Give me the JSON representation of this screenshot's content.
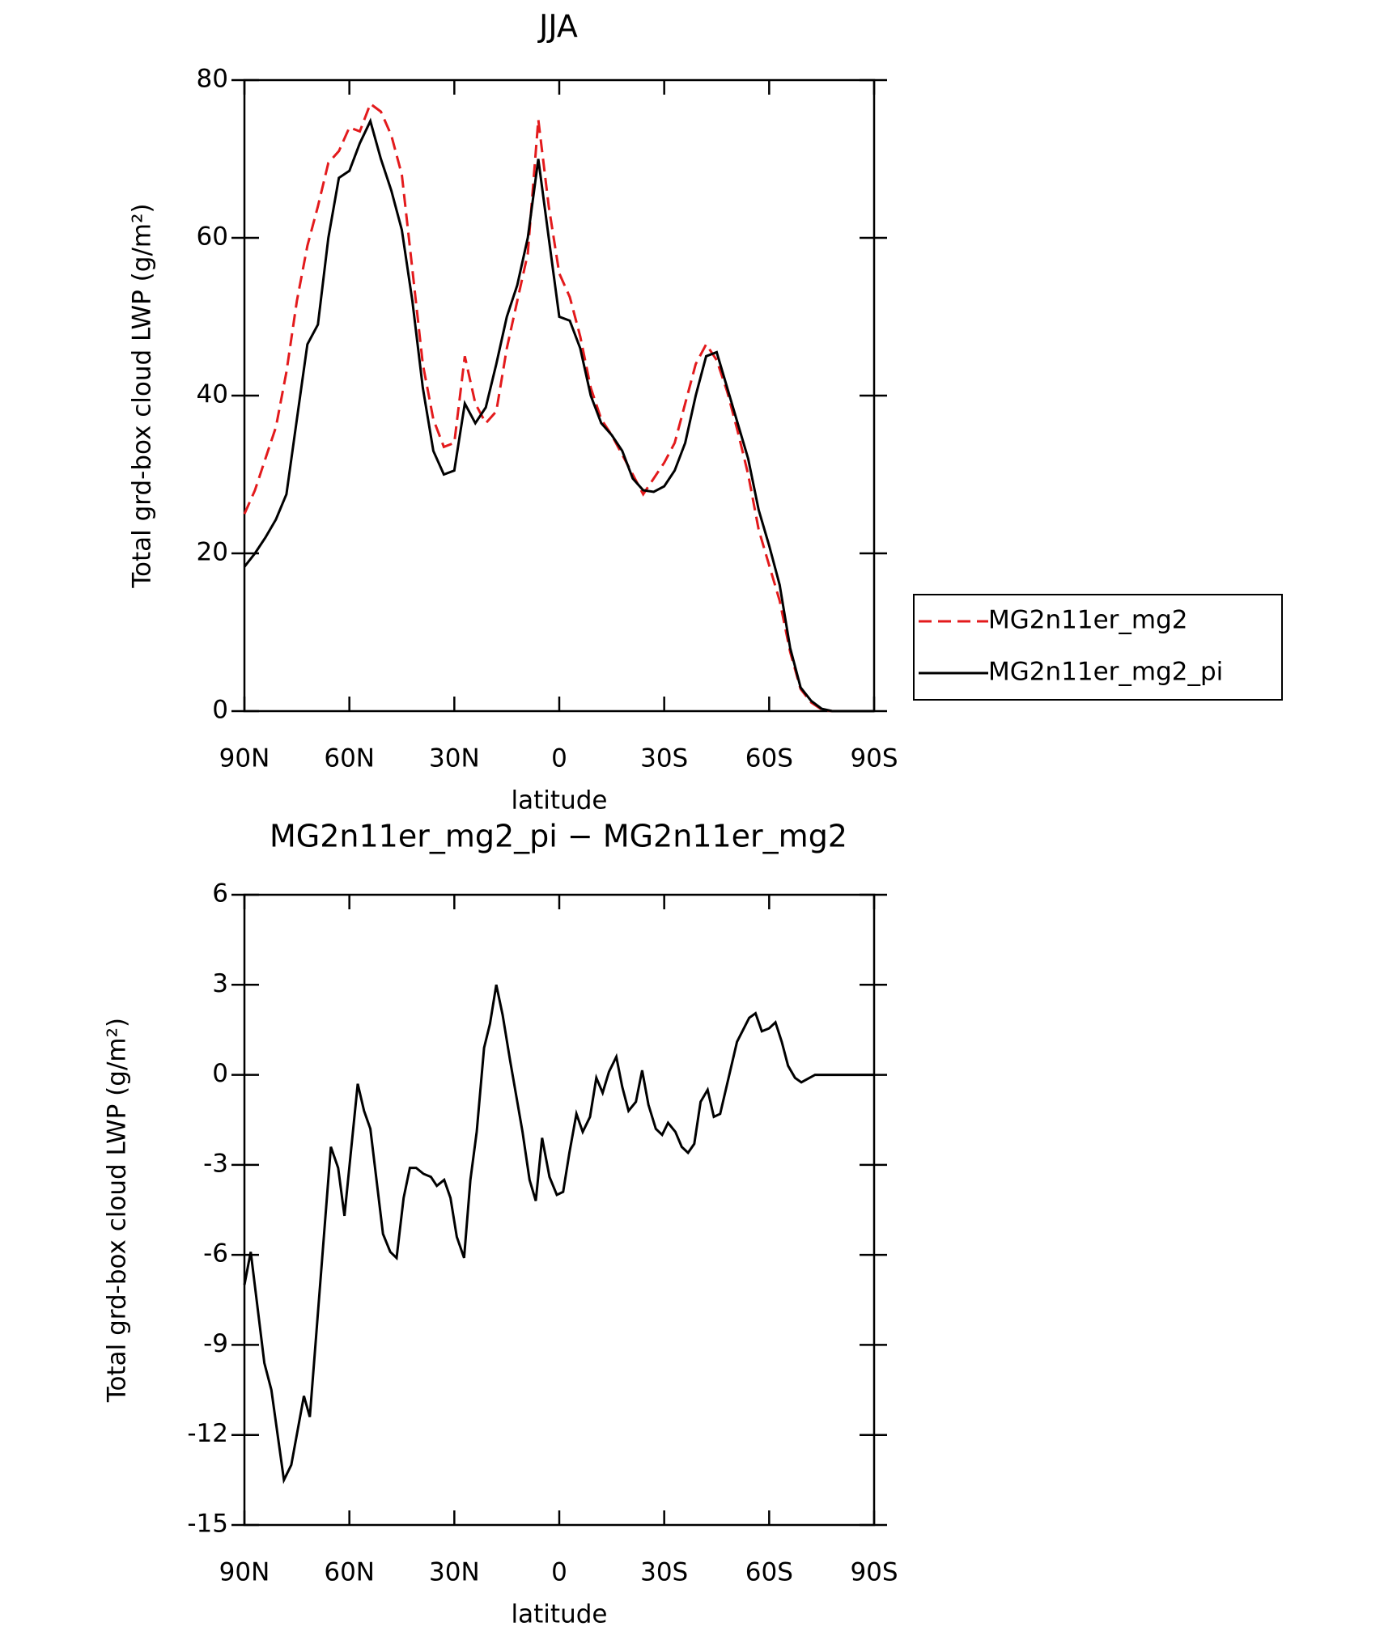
{
  "chart_data": [
    {
      "type": "line",
      "title": "JJA",
      "xlabel": "latitude",
      "ylabel": "Total grd-box cloud LWP (g/m²)",
      "x": [
        90,
        87,
        84,
        81,
        78,
        75,
        72,
        69,
        66,
        63,
        60,
        57,
        54,
        51,
        48,
        45,
        42,
        39,
        36,
        33,
        30,
        27,
        24,
        21,
        18,
        15,
        12,
        9,
        6,
        3,
        0,
        -3,
        -6,
        -9,
        -12,
        -15,
        -18,
        -21,
        -24,
        -27,
        -30,
        -33,
        -36,
        -39,
        -42,
        -45,
        -48,
        -51,
        -54,
        -57,
        -60,
        -63,
        -66,
        -69,
        -72,
        -75,
        -78,
        -81,
        -84,
        -87,
        -90
      ],
      "series": [
        {
          "name": "MG2n11er_mg2",
          "color": "#e31a1c",
          "dash": true,
          "values": [
            25,
            28,
            32,
            36,
            43,
            52,
            59,
            64,
            69.5,
            71,
            74,
            73.5,
            77,
            76,
            73,
            68,
            56,
            44,
            37,
            33.5,
            34,
            45,
            39,
            36.5,
            38,
            46,
            52,
            58,
            75,
            64,
            55.5,
            52.5,
            47.5,
            41,
            37,
            35,
            32.5,
            30,
            27.5,
            29.5,
            31.5,
            34,
            39,
            44,
            46.5,
            44.5,
            40.5,
            35.5,
            30,
            23,
            18.5,
            14,
            7.5,
            2.8,
            1.1,
            0.2,
            0,
            0,
            0,
            0,
            0
          ]
        },
        {
          "name": "MG2n11er_mg2_pi",
          "color": "#000000",
          "dash": false,
          "values": [
            18.3,
            20,
            22,
            24.3,
            27.5,
            37,
            46.5,
            49,
            60,
            67.6,
            68.5,
            72,
            74.8,
            70,
            66,
            61,
            52,
            41,
            33,
            30,
            30.5,
            39,
            36.5,
            38.5,
            44,
            50,
            54,
            60,
            70,
            60,
            50,
            49.5,
            46,
            40,
            36.5,
            35,
            33,
            29.5,
            28,
            27.8,
            28.5,
            30.5,
            34,
            40,
            45,
            45.5,
            41,
            36.5,
            32,
            25.5,
            21,
            16,
            8,
            3,
            1.3,
            0.3,
            0,
            0,
            0,
            0,
            0
          ]
        }
      ],
      "xlim": [
        90,
        -90
      ],
      "xticks": [
        {
          "value": 90,
          "label": "90N"
        },
        {
          "value": 60,
          "label": "60N"
        },
        {
          "value": 30,
          "label": "30N"
        },
        0,
        {
          "value": -30,
          "label": "30S"
        },
        {
          "value": -60,
          "label": "60S"
        },
        {
          "value": -90,
          "label": "90S"
        }
      ],
      "ylim": [
        0,
        80
      ],
      "yticks": [
        0,
        20,
        40,
        60,
        80
      ],
      "legend": "right"
    },
    {
      "type": "line",
      "title": "MG2n11er_mg2_pi − MG2n11er_mg2",
      "xlabel": "latitude",
      "ylabel": "Total grd-box cloud LWP (g/m²)",
      "x": [
        90,
        88.2,
        84.3,
        82.3,
        78.7,
        76.6,
        73,
        71.3,
        65.3,
        63.2,
        61.4,
        57.6,
        55.8,
        54,
        50.4,
        48.3,
        46.5,
        44.5,
        42.7,
        40.9,
        38.8,
        36.7,
        35,
        32.9,
        31.1,
        29.3,
        27.2,
        25.4,
        23.6,
        21.5,
        19.8,
        18,
        16.2,
        14.1,
        10.5,
        8.5,
        6.7,
        4.9,
        2.8,
        0.7,
        -1.1,
        -2.9,
        -4.9,
        -6.7,
        -8.8,
        -10.6,
        -12.4,
        -14.2,
        -16.3,
        -18,
        -19.8,
        -21.9,
        -23.7,
        -25.5,
        -27.6,
        -29.4,
        -31.1,
        -33.2,
        -35,
        -36.8,
        -38.6,
        -40.4,
        -42.4,
        -44.2,
        -46,
        -50.8,
        -54.3,
        -56.1,
        -57.9,
        -60,
        -61.8,
        -63.6,
        -65.4,
        -67.4,
        -69.2,
        -73.1,
        -90
      ],
      "color": "#000000",
      "values": [
        -7,
        -5.9,
        -9.6,
        -10.5,
        -13.5,
        -13,
        -10.7,
        -11.4,
        -2.4,
        -3.1,
        -4.7,
        -0.3,
        -1.2,
        -1.8,
        -5.3,
        -5.9,
        -6.1,
        -4.1,
        -3.1,
        -3.1,
        -3.3,
        -3.4,
        -3.7,
        -3.5,
        -4.1,
        -5.4,
        -6.1,
        -3.5,
        -1.9,
        0.9,
        1.7,
        3,
        2,
        0.5,
        -1.9,
        -3.5,
        -4.2,
        -2.1,
        -3.4,
        -4,
        -3.9,
        -2.6,
        -1.3,
        -1.9,
        -1.4,
        -0.1,
        -0.6,
        0.1,
        0.6,
        -0.4,
        -1.2,
        -0.9,
        0.15,
        -1,
        -1.8,
        -2,
        -1.6,
        -1.9,
        -2.4,
        -2.6,
        -2.3,
        -0.9,
        -0.5,
        -1.4,
        -1.3,
        1.1,
        1.9,
        2.05,
        1.45,
        1.55,
        1.75,
        1.1,
        0.3,
        -0.1,
        -0.25,
        0,
        0
      ],
      "xlim": [
        90,
        -90
      ],
      "xticks": [
        {
          "value": 90,
          "label": "90N"
        },
        {
          "value": 60,
          "label": "60N"
        },
        {
          "value": 30,
          "label": "30N"
        },
        0,
        {
          "value": -30,
          "label": "30S"
        },
        {
          "value": -60,
          "label": "60S"
        },
        {
          "value": -90,
          "label": "90S"
        }
      ],
      "ylim": [
        -15,
        6
      ],
      "yticks": [
        6,
        3,
        0,
        -3,
        -6,
        -9,
        -12,
        -15
      ]
    }
  ]
}
